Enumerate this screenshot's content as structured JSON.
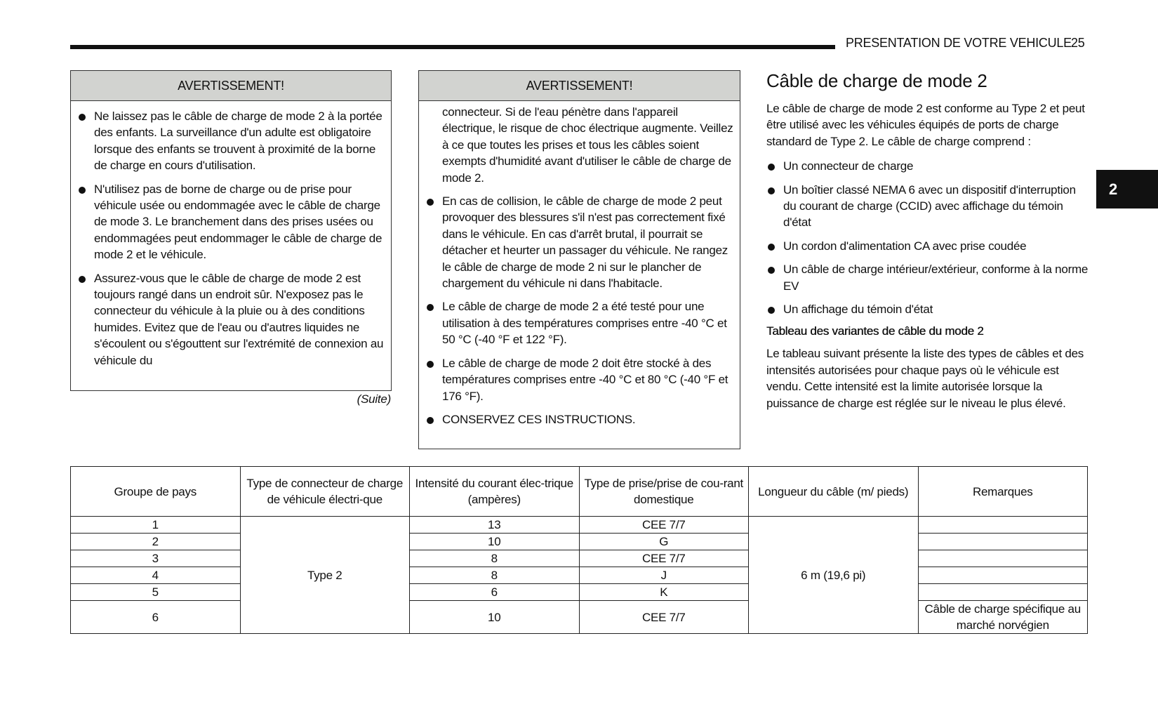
{
  "header": {
    "section_title": "PRESENTATION DE VOTRE VEHICULE",
    "page_number": "25",
    "chapter_tab": "2"
  },
  "warning_left": {
    "title": "AVERTISSEMENT!",
    "items": [
      "Ne laissez pas le câble de charge de mode 2 à la portée des enfants. La surveillance d'un adulte est obligatoire lorsque des enfants se trouvent à proximité de la borne de charge en cours d'utilisation.",
      "N'utilisez pas de borne de charge ou de prise pour véhicule usée ou endommagée avec le câble de charge de mode 3. Le branchement dans des prises usées ou endommagées peut endommager le câble de charge de mode 2 et le véhicule.",
      "Assurez-vous que le câble de charge de mode 2 est toujours rangé dans un endroit sûr. N'exposez pas le connecteur du véhicule à la pluie ou à des conditions humides. Evitez que de l'eau ou d'autres liquides ne s'écoulent ou s'égouttent sur l'extrémité de connexion au véhicule du"
    ],
    "continued": "(Suite)"
  },
  "warning_middle": {
    "title": "AVERTISSEMENT!",
    "continuation": "connecteur. Si de l'eau pénètre dans l'appareil électrique, le risque de choc électrique augmente. Veillez à ce que toutes les prises et tous les câbles soient exempts d'humidité avant d'utiliser le câble de charge de mode 2.",
    "items": [
      "En cas de collision, le câble de charge de mode 2 peut provoquer des blessures s'il n'est pas correctement fixé dans le véhicule. En cas d'arrêt brutal, il pourrait se détacher et heurter un passager du véhicule. Ne rangez le câble de charge de mode 2 ni sur le plancher de chargement du véhicule ni dans l'habitacle.",
      "Le câble de charge de mode 2 a été testé pour une utilisation à des températures comprises entre -40 °C et 50 °C (-40 °F et 122 °F).",
      "Le câble de charge de mode 2 doit être stocké à des températures comprises entre -40 °C et 80 °C (-40 °F et 176 °F).",
      "CONSERVEZ CES INSTRUCTIONS."
    ]
  },
  "right_column": {
    "heading": "Câble de charge de mode 2",
    "intro": "Le câble de charge de mode 2 est conforme au Type 2 et peut être utilisé avec les véhicules équipés de ports de charge standard de Type 2. Le câble de charge comprend :",
    "items": [
      "Un connecteur de charge",
      "Un boîtier classé NEMA 6 avec un dispositif d'interruption du courant de charge (CCID) avec affichage du témoin d'état",
      "Un cordon d'alimentation CA avec prise coudée",
      "Un câble de charge intérieur/extérieur, conforme à la norme EV",
      "Un affichage du témoin d'état"
    ],
    "subheading": "Tableau des variantes de câble du mode 2",
    "table_intro": "Le tableau suivant présente la liste des types de câbles et des intensités autorisées pour chaque pays où le véhicule est vendu. Cette intensité est la limite autorisée lorsque la puissance de charge est réglée sur le niveau le plus élevé."
  },
  "table": {
    "headers": [
      "Groupe de pays",
      "Type de connecteur de charge de véhicule électri-que",
      "Intensité du courant élec-trique (ampères)",
      "Type de prise/prise de cou-rant domestique",
      "Longueur du câble (m/ pieds)",
      "Remarques"
    ],
    "connector_type": "Type 2",
    "cable_length": "6 m (19,6 pi)",
    "rows": [
      {
        "group": "1",
        "current": "13",
        "plug": "CEE 7/7",
        "remarks": ""
      },
      {
        "group": "2",
        "current": "10",
        "plug": "G",
        "remarks": ""
      },
      {
        "group": "3",
        "current": "8",
        "plug": "CEE 7/7",
        "remarks": ""
      },
      {
        "group": "4",
        "current": "8",
        "plug": "J",
        "remarks": ""
      },
      {
        "group": "5",
        "current": "6",
        "plug": "K",
        "remarks": ""
      },
      {
        "group": "6",
        "current": "10",
        "plug": "CEE 7/7",
        "remarks": "Câble de charge spécifique au marché norvégien"
      }
    ]
  }
}
